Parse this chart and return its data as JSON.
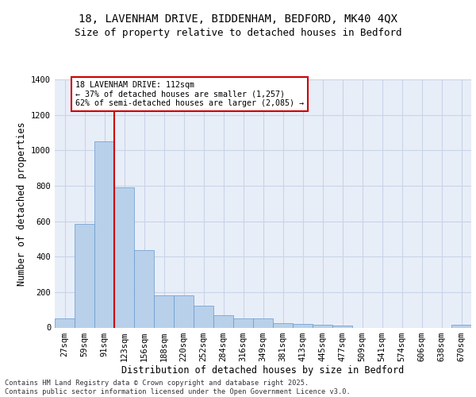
{
  "title_line1": "18, LAVENHAM DRIVE, BIDDENHAM, BEDFORD, MK40 4QX",
  "title_line2": "Size of property relative to detached houses in Bedford",
  "xlabel": "Distribution of detached houses by size in Bedford",
  "ylabel": "Number of detached properties",
  "categories": [
    "27sqm",
    "59sqm",
    "91sqm",
    "123sqm",
    "156sqm",
    "188sqm",
    "220sqm",
    "252sqm",
    "284sqm",
    "316sqm",
    "349sqm",
    "381sqm",
    "413sqm",
    "445sqm",
    "477sqm",
    "509sqm",
    "541sqm",
    "574sqm",
    "606sqm",
    "638sqm",
    "670sqm"
  ],
  "values": [
    50,
    585,
    1050,
    790,
    435,
    180,
    180,
    125,
    70,
    50,
    50,
    25,
    20,
    15,
    10,
    0,
    0,
    0,
    0,
    0,
    15
  ],
  "bar_color": "#b8d0ea",
  "bar_edge_color": "#6699cc",
  "grid_color": "#c8d4e8",
  "background_color": "#e8eef8",
  "vline_color": "#cc0000",
  "vline_x_index": 2,
  "annotation_text": "18 LAVENHAM DRIVE: 112sqm\n← 37% of detached houses are smaller (1,257)\n62% of semi-detached houses are larger (2,085) →",
  "annotation_box_color": "#cc0000",
  "ylim": [
    0,
    1400
  ],
  "yticks": [
    0,
    200,
    400,
    600,
    800,
    1000,
    1200,
    1400
  ],
  "footer": "Contains HM Land Registry data © Crown copyright and database right 2025.\nContains public sector information licensed under the Open Government Licence v3.0.",
  "title_fontsize": 10,
  "subtitle_fontsize": 9,
  "axis_label_fontsize": 8.5,
  "tick_fontsize": 7.5,
  "footer_fontsize": 6.2
}
